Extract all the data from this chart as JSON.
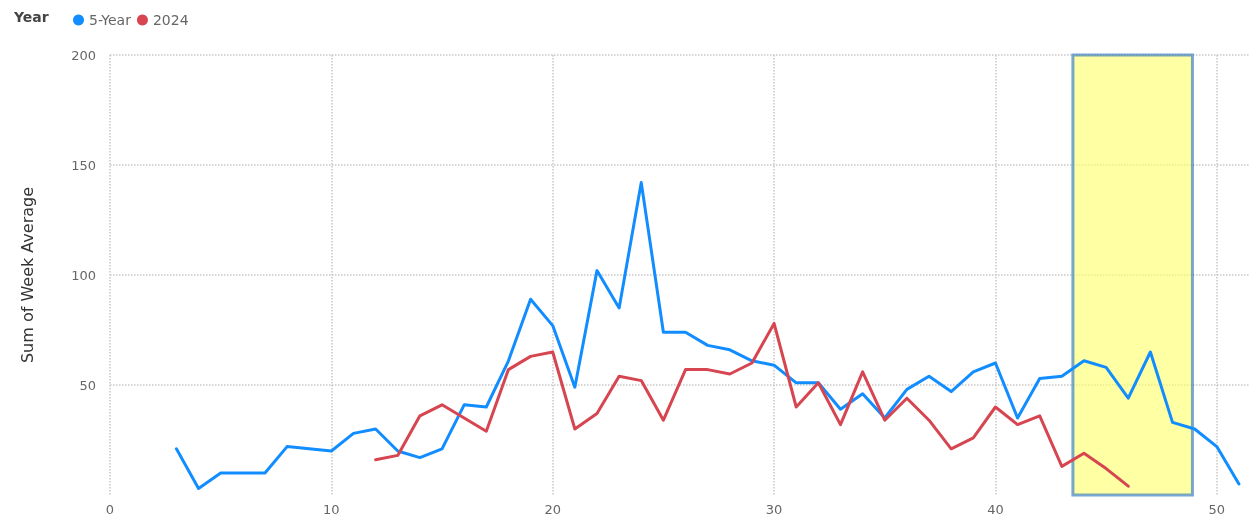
{
  "chart_data": {
    "type": "line",
    "ylabel": "Sum of Week Average",
    "legend_title": "Year",
    "legend": "top left",
    "grid": true,
    "marker": "none",
    "line_style": "solid",
    "xlim": [
      0,
      51.5
    ],
    "xticks": [
      0,
      10,
      20,
      30,
      40,
      50
    ],
    "ylim": [
      0,
      200
    ],
    "yticks": [
      50,
      100,
      150,
      200
    ],
    "series": [
      {
        "name": "5-Year",
        "color": "#118dff",
        "x": [
          3,
          4,
          5,
          6,
          7,
          8,
          9,
          10,
          11,
          12,
          13,
          14,
          15,
          16,
          17,
          18,
          19,
          20,
          21,
          22,
          23,
          24,
          25,
          26,
          27,
          28,
          29,
          30,
          31,
          32,
          33,
          34,
          35,
          36,
          37,
          38,
          39,
          40,
          41,
          42,
          43,
          44,
          45,
          46,
          47,
          48,
          49,
          50,
          51
        ],
        "values": [
          21,
          3,
          10,
          10,
          10,
          22,
          21,
          20,
          28,
          30,
          20,
          17,
          21,
          41,
          40,
          61,
          89,
          77,
          49,
          102,
          85,
          142,
          74,
          74,
          68,
          66,
          61,
          59,
          51,
          51,
          39,
          46,
          35,
          48,
          54,
          47,
          56,
          60,
          35,
          53,
          54,
          61,
          58,
          44,
          65,
          33,
          30,
          22,
          5
        ]
      },
      {
        "name": "2024",
        "color": "#d64550",
        "x": [
          12,
          13,
          14,
          15,
          16,
          17,
          18,
          19,
          20,
          21,
          22,
          23,
          24,
          25,
          26,
          27,
          28,
          29,
          30,
          31,
          32,
          33,
          34,
          35,
          36,
          37,
          38,
          39,
          40,
          41,
          42,
          43,
          44,
          45,
          46
        ],
        "values": [
          16,
          18,
          36,
          41,
          35,
          29,
          57,
          63,
          65,
          30,
          37,
          54,
          52,
          34,
          57,
          57,
          55,
          60,
          78,
          40,
          51,
          32,
          56,
          34,
          44,
          34,
          21,
          26,
          40,
          32,
          36,
          13,
          19,
          12,
          4
        ]
      }
    ],
    "bands": [
      {
        "axis": "x",
        "from": 43.5,
        "to": 48.9,
        "color": "#ffff66"
      }
    ]
  }
}
